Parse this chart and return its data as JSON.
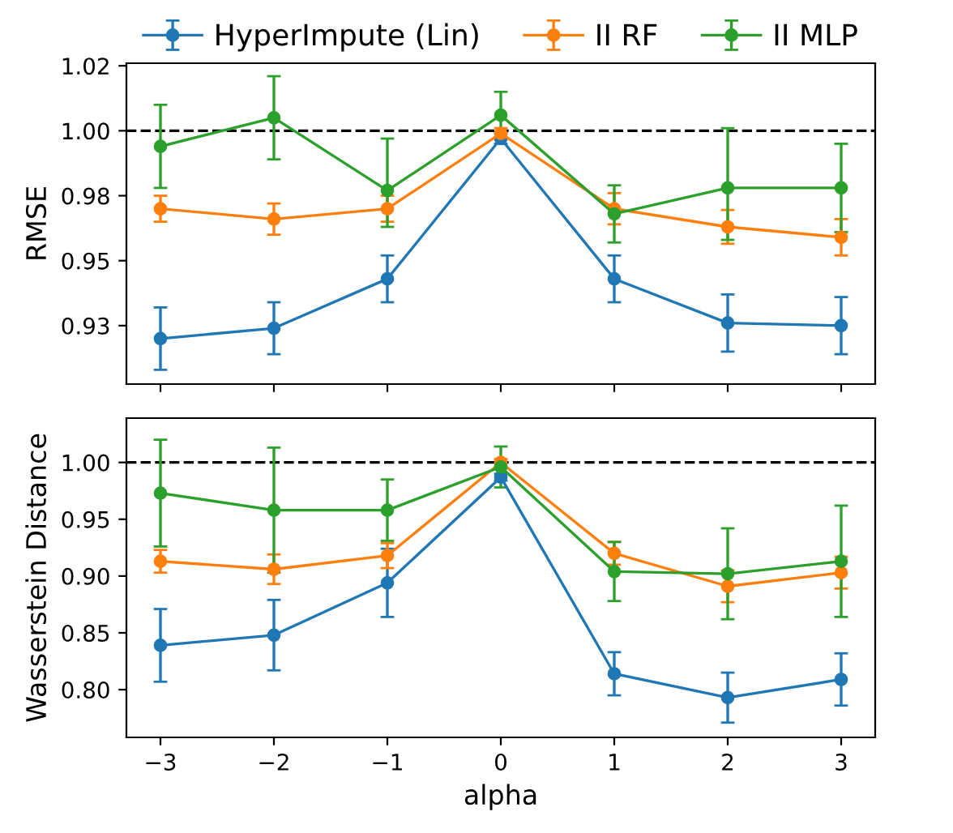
{
  "chart_data": [
    {
      "type": "line",
      "ylabel": "RMSE",
      "x": [
        -3,
        -2,
        -1,
        0,
        1,
        2,
        3
      ],
      "xlim": [
        -3.3,
        3.3
      ],
      "xticks": [
        -3,
        -2,
        -1,
        0,
        1,
        2,
        3
      ],
      "ylim": [
        0.9025,
        1.026
      ],
      "yticks": [
        {
          "value": 0.925,
          "label": "0.93"
        },
        {
          "value": 0.95,
          "label": "0.95"
        },
        {
          "value": 0.975,
          "label": "0.98"
        },
        {
          "value": 1.0,
          "label": "1.00"
        },
        {
          "value": 1.025,
          "label": "1.02"
        }
      ],
      "tick_labels": "y",
      "marker": "circle",
      "grid": false,
      "legend": "top",
      "ref_lines": [
        {
          "axis": "y",
          "value": 1.0,
          "color": "#000000",
          "line_style": "dashed"
        }
      ],
      "series": [
        {
          "name": "HyperImpute (Lin)",
          "color": "#1f77b4",
          "values": [
            0.92,
            0.924,
            0.943,
            0.997,
            0.943,
            0.926,
            0.925
          ],
          "errors": [
            0.012,
            0.01,
            0.009,
            0.002,
            0.009,
            0.011,
            0.011
          ]
        },
        {
          "name": "II RF",
          "color": "#ff7f0e",
          "values": [
            0.97,
            0.966,
            0.97,
            0.999,
            0.97,
            0.963,
            0.959
          ],
          "errors": [
            0.005,
            0.006,
            0.005,
            0.002,
            0.006,
            0.0065,
            0.007
          ]
        },
        {
          "name": "II MLP",
          "color": "#2ca02c",
          "values": [
            0.994,
            1.005,
            0.977,
            1.006,
            0.968,
            0.978,
            0.978
          ],
          "errors": [
            0.016,
            0.016,
            [
              0.963,
              0.997
            ],
            0.009,
            0.011,
            [
              0.958,
              1.001
            ],
            0.017
          ]
        }
      ]
    },
    {
      "type": "line",
      "ylabel": "Wasserstein Distance",
      "xlabel": "alpha",
      "x": [
        -3,
        -2,
        -1,
        0,
        1,
        2,
        3
      ],
      "xlim": [
        -3.3,
        3.3
      ],
      "xticks": [
        {
          "value": -3,
          "label": "−3"
        },
        {
          "value": -2,
          "label": "−2"
        },
        {
          "value": -1,
          "label": "−1"
        },
        0,
        1,
        2,
        3
      ],
      "ylim": [
        0.758,
        1.039
      ],
      "yticks": [
        {
          "value": 0.8,
          "label": "0.80"
        },
        {
          "value": 0.85,
          "label": "0.85"
        },
        {
          "value": 0.9,
          "label": "0.90"
        },
        {
          "value": 0.95,
          "label": "0.95"
        },
        {
          "value": 1.0,
          "label": "1.00"
        }
      ],
      "marker": "circle",
      "grid": false,
      "ref_lines": [
        {
          "axis": "y",
          "value": 1.0,
          "color": "#000000",
          "line_style": "dashed"
        }
      ],
      "series": [
        {
          "color": "#1f77b4",
          "values": [
            0.839,
            0.848,
            0.894,
            0.987,
            0.814,
            0.793,
            0.809
          ],
          "errors": [
            0.032,
            0.031,
            0.03,
            0.003,
            0.019,
            0.022,
            0.023
          ]
        },
        {
          "color": "#ff7f0e",
          "values": [
            0.913,
            0.906,
            0.918,
            1.0,
            0.92,
            0.891,
            0.903
          ],
          "errors": [
            0.01,
            0.013,
            0.011,
            0.003,
            0.01,
            0.014,
            0.014
          ]
        },
        {
          "color": "#2ca02c",
          "values": [
            0.973,
            0.958,
            0.958,
            0.996,
            0.904,
            0.902,
            0.913
          ],
          "errors": [
            0.047,
            0.055,
            0.027,
            0.018,
            0.026,
            0.04,
            0.049
          ]
        }
      ]
    }
  ]
}
